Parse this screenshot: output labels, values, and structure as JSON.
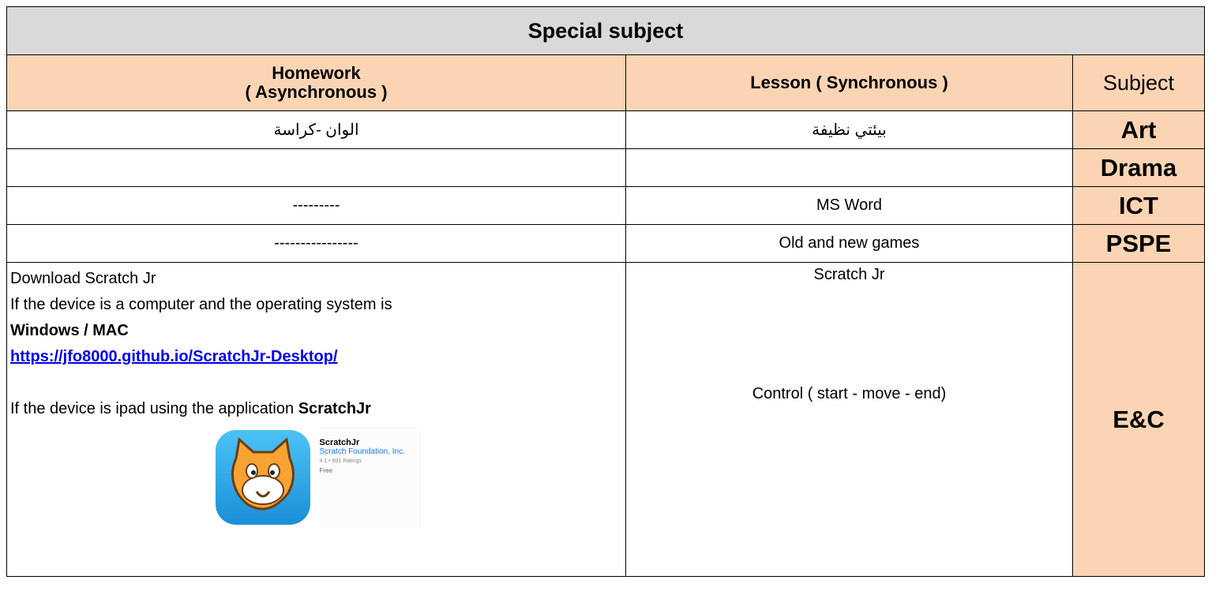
{
  "table": {
    "title": "Special subject",
    "headers": {
      "homework": [
        "Homework",
        "( Asynchronous )"
      ],
      "lesson": "Lesson ( Synchronous )",
      "subject": "Subject"
    },
    "rows": [
      {
        "subject": "Art",
        "lesson": "بيئتي نظيفة",
        "homework": "الوان -كراسة"
      },
      {
        "subject": "Drama"
      },
      {
        "subject": "ICT",
        "lesson": "MS Word",
        "homework": "---------"
      },
      {
        "subject": "PSPE",
        "lesson": "Old and new games",
        "homework": "----------------"
      },
      {
        "subject": "E&C",
        "lesson": [
          "Scratch Jr",
          "Control  ( start - move - end)"
        ],
        "homework": {
          "intro": "Download Scratch Jr",
          "computer": "If the device is a computer and the operating system is",
          "os": "Windows / MAC",
          "link": "https://jfo8000.github.io/ScratchJr-Desktop/",
          "ipad": "If the device is ipad using the application",
          "app_name": "ScratchJr",
          "app": {
            "name": "ScratchJr",
            "publisher": "Scratch Foundation, Inc.",
            "rating": "4.1 • 601 Ratings",
            "price": "Free"
          }
        }
      }
    ]
  }
}
